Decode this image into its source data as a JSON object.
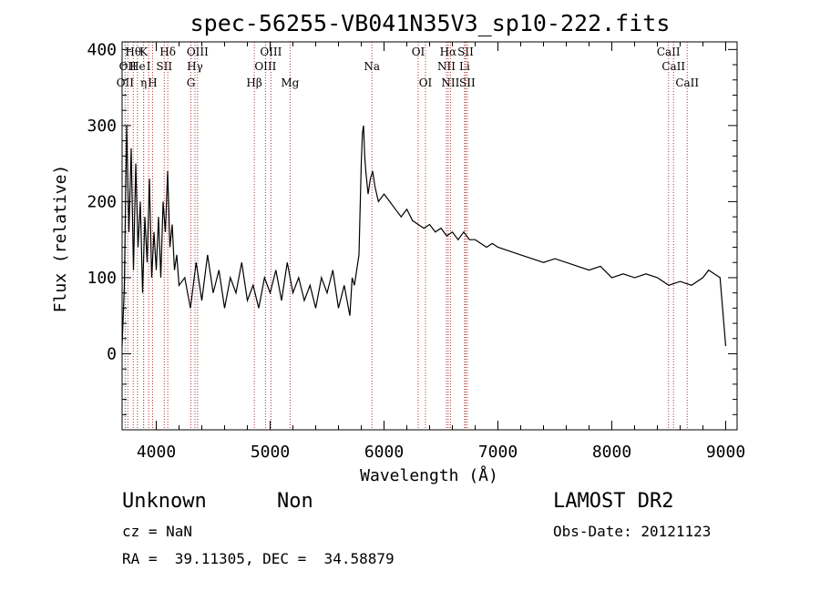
{
  "chart_data": {
    "type": "line",
    "title": "spec-56255-VB041N35V3_sp10-222.fits",
    "xlabel": "Wavelength (Å)",
    "ylabel": "Flux (relative)",
    "xlim": [
      3700,
      9100
    ],
    "ylim": [
      -100,
      410
    ],
    "xticks": [
      4000,
      5000,
      6000,
      7000,
      8000,
      9000
    ],
    "yticks": [
      0,
      100,
      200,
      300,
      400
    ],
    "grid": false,
    "series": [
      {
        "x": [
          3700,
          3720,
          3740,
          3760,
          3780,
          3800,
          3820,
          3840,
          3860,
          3880,
          3900,
          3920,
          3940,
          3960,
          3980,
          4000,
          4020,
          4040,
          4060,
          4080,
          4100,
          4120,
          4140,
          4160,
          4180,
          4200,
          4250,
          4300,
          4350,
          4400,
          4450,
          4500,
          4550,
          4600,
          4650,
          4700,
          4750,
          4800,
          4850,
          4900,
          4950,
          5000,
          5050,
          5100,
          5150,
          5200,
          5250,
          5300,
          5350,
          5400,
          5450,
          5500,
          5550,
          5600,
          5650,
          5700,
          5720,
          5740,
          5760,
          5780,
          5800,
          5810,
          5820,
          5830,
          5840,
          5860,
          5880,
          5900,
          5920,
          5950,
          6000,
          6050,
          6100,
          6150,
          6200,
          6250,
          6300,
          6350,
          6400,
          6450,
          6500,
          6550,
          6600,
          6650,
          6700,
          6750,
          6800,
          6850,
          6900,
          6950,
          7000,
          7100,
          7200,
          7300,
          7400,
          7500,
          7600,
          7700,
          7800,
          7900,
          8000,
          8100,
          8200,
          8300,
          8400,
          8500,
          8600,
          8700,
          8800,
          8850,
          8900,
          8950,
          9000
        ],
        "y": [
          10,
          90,
          300,
          160,
          270,
          110,
          250,
          140,
          200,
          80,
          180,
          120,
          230,
          100,
          160,
          110,
          180,
          100,
          200,
          160,
          240,
          140,
          170,
          110,
          130,
          90,
          100,
          60,
          120,
          70,
          130,
          80,
          110,
          60,
          100,
          80,
          120,
          70,
          90,
          60,
          100,
          80,
          110,
          70,
          120,
          80,
          100,
          70,
          90,
          60,
          100,
          80,
          110,
          60,
          90,
          50,
          100,
          90,
          110,
          130,
          250,
          290,
          300,
          260,
          240,
          210,
          230,
          240,
          220,
          200,
          210,
          200,
          190,
          180,
          190,
          175,
          170,
          165,
          170,
          160,
          165,
          155,
          160,
          150,
          160,
          150,
          150,
          145,
          140,
          145,
          140,
          135,
          130,
          125,
          120,
          125,
          120,
          115,
          110,
          115,
          100,
          105,
          100,
          105,
          100,
          90,
          95,
          90,
          100,
          110,
          105,
          100,
          10
        ]
      }
    ]
  },
  "line_marks": [
    {
      "wl": 3727,
      "row": 3,
      "label": "OII"
    },
    {
      "wl": 3750,
      "row": 2,
      "label": "OII"
    },
    {
      "wl": 3798,
      "row": 1,
      "label": "Hθ"
    },
    {
      "wl": 3835,
      "row": 2,
      "label": "He"
    },
    {
      "wl": 3889,
      "row": 1,
      "label": "K"
    },
    {
      "wl": 3889,
      "row": 3,
      "label": "η"
    },
    {
      "wl": 3933,
      "row": 2,
      "label": "I"
    },
    {
      "wl": 3968,
      "row": 3,
      "label": "H"
    },
    {
      "wl": 4070,
      "row": 2,
      "label": "SII"
    },
    {
      "wl": 4101,
      "row": 1,
      "label": "Hδ"
    },
    {
      "wl": 4304,
      "row": 3,
      "label": "G"
    },
    {
      "wl": 4340,
      "row": 2,
      "label": "Hγ"
    },
    {
      "wl": 4363,
      "row": 1,
      "label": "OIII"
    },
    {
      "wl": 4861,
      "row": 3,
      "label": "Hβ"
    },
    {
      "wl": 4959,
      "row": 2,
      "label": "OIII"
    },
    {
      "wl": 5007,
      "row": 1,
      "label": "OIII"
    },
    {
      "wl": 5175,
      "row": 3,
      "label": "Mg"
    },
    {
      "wl": 5894,
      "row": 2,
      "label": "Na"
    },
    {
      "wl": 6300,
      "row": 1,
      "label": "OI"
    },
    {
      "wl": 6364,
      "row": 3,
      "label": "OI"
    },
    {
      "wl": 6548,
      "row": 2,
      "label": "NII"
    },
    {
      "wl": 6563,
      "row": 1,
      "label": "Hα"
    },
    {
      "wl": 6583,
      "row": 3,
      "label": "NII"
    },
    {
      "wl": 6707,
      "row": 2,
      "label": "Li"
    },
    {
      "wl": 6716,
      "row": 1,
      "label": "SII"
    },
    {
      "wl": 6731,
      "row": 3,
      "label": "SII"
    },
    {
      "wl": 8498,
      "row": 1,
      "label": "CaII"
    },
    {
      "wl": 8542,
      "row": 2,
      "label": "CaII"
    },
    {
      "wl": 8662,
      "row": 3,
      "label": "CaII"
    }
  ],
  "info": {
    "object_class": "Unknown",
    "subclass": "Non",
    "survey": "LAMOST DR2",
    "cz": "cz = NaN",
    "obs_date": "Obs-Date: 20121123",
    "coords": "RA =  39.11305, DEC =  34.58879"
  }
}
